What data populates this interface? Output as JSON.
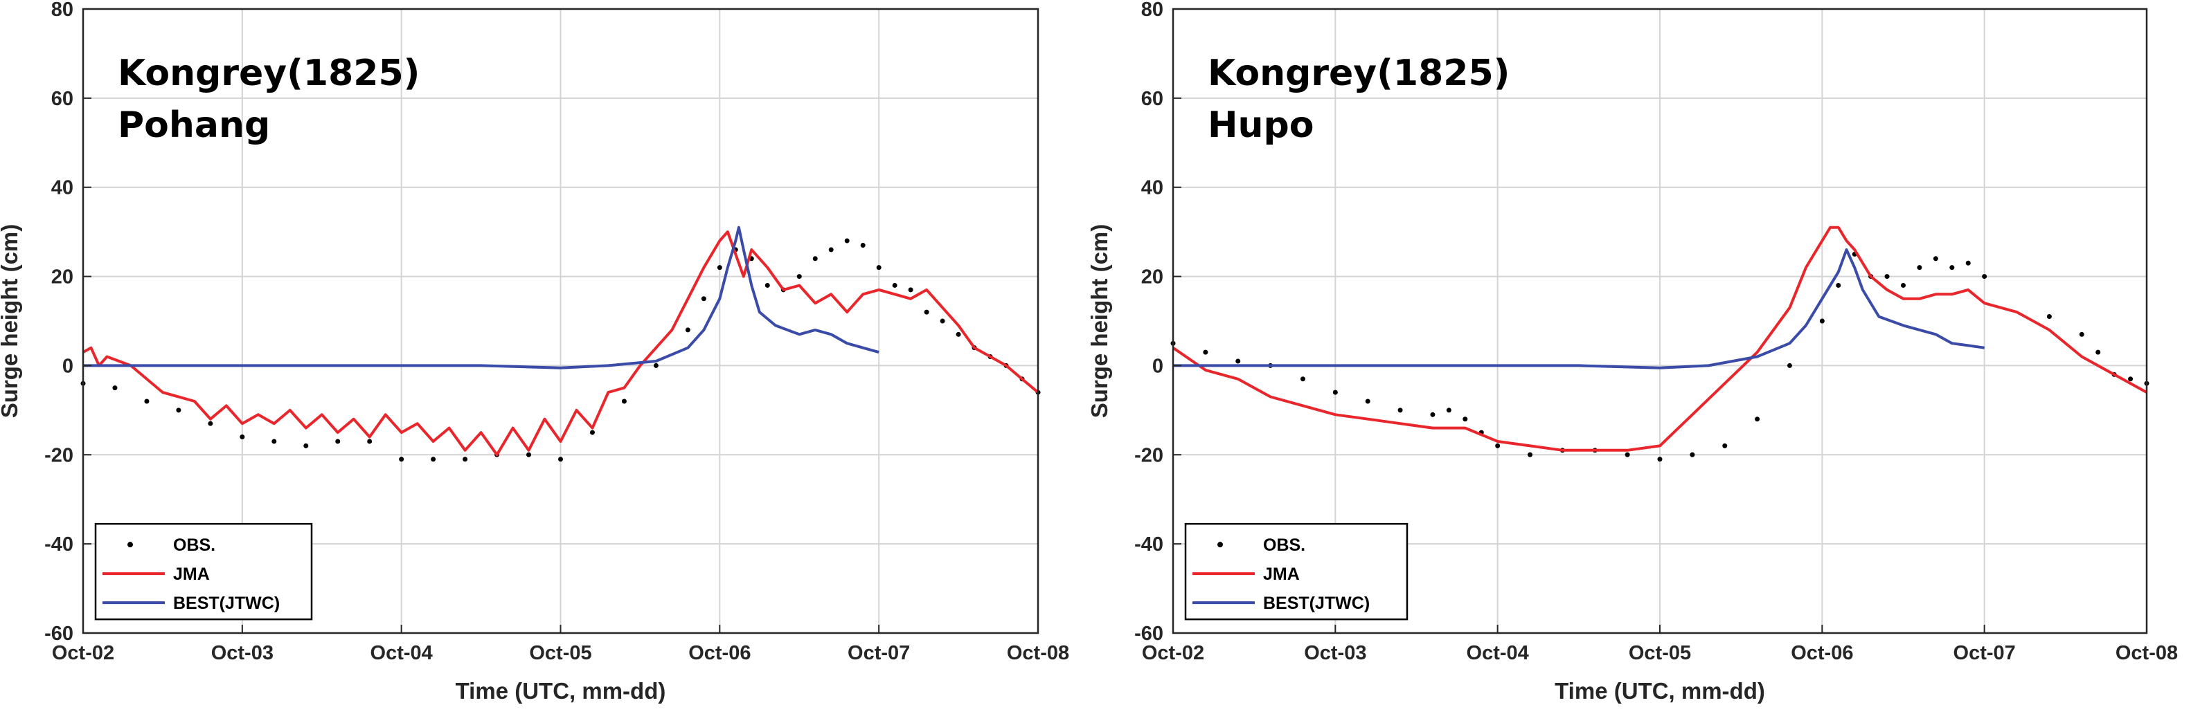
{
  "chart_data": [
    {
      "type": "line",
      "title_lines": [
        "Kongrey(1825)",
        "Pohang"
      ],
      "xlabel": "Time (UTC, mm-dd)",
      "ylabel": "Surge height (cm)",
      "x_tick_labels": [
        "Oct-02",
        "Oct-03",
        "Oct-04",
        "Oct-05",
        "Oct-06",
        "Oct-07",
        "Oct-08"
      ],
      "y_ticks": [
        80,
        60,
        40,
        20,
        0,
        -20,
        -40,
        -60
      ],
      "xlim_days": [
        0,
        6
      ],
      "ylim": [
        -60,
        80
      ],
      "grid": true,
      "legend_position": "bottom-left",
      "legend": [
        "OBS.",
        "JMA",
        "BEST(JTWC)"
      ],
      "series": [
        {
          "name": "OBS.",
          "style": "dots",
          "color": "#000000",
          "points": [
            [
              0,
              -4
            ],
            [
              0.2,
              -5
            ],
            [
              0.4,
              -8
            ],
            [
              0.6,
              -10
            ],
            [
              0.8,
              -13
            ],
            [
              1.0,
              -16
            ],
            [
              1.2,
              -17
            ],
            [
              1.4,
              -18
            ],
            [
              1.6,
              -17
            ],
            [
              1.8,
              -17
            ],
            [
              2.0,
              -21
            ],
            [
              2.2,
              -21
            ],
            [
              2.4,
              -21
            ],
            [
              2.6,
              -20
            ],
            [
              2.8,
              -20
            ],
            [
              3.0,
              -21
            ],
            [
              3.2,
              -15
            ],
            [
              3.4,
              -8
            ],
            [
              3.6,
              0
            ],
            [
              3.8,
              8
            ],
            [
              3.9,
              15
            ],
            [
              4.0,
              22
            ],
            [
              4.1,
              26
            ],
            [
              4.2,
              24
            ],
            [
              4.3,
              18
            ],
            [
              4.4,
              17
            ],
            [
              4.5,
              20
            ],
            [
              4.6,
              24
            ],
            [
              4.7,
              26
            ],
            [
              4.8,
              28
            ],
            [
              4.9,
              27
            ],
            [
              5.0,
              22
            ],
            [
              5.1,
              18
            ],
            [
              5.2,
              17
            ],
            [
              5.3,
              12
            ],
            [
              5.4,
              10
            ],
            [
              5.5,
              7
            ],
            [
              5.6,
              4
            ],
            [
              5.7,
              2
            ],
            [
              5.8,
              0
            ],
            [
              5.9,
              -3
            ],
            [
              6.0,
              -6
            ]
          ]
        },
        {
          "name": "JMA",
          "style": "line",
          "color": "#e8262b",
          "points": [
            [
              0,
              3
            ],
            [
              0.05,
              4
            ],
            [
              0.1,
              0
            ],
            [
              0.15,
              2
            ],
            [
              0.3,
              0
            ],
            [
              0.5,
              -6
            ],
            [
              0.7,
              -8
            ],
            [
              0.8,
              -12
            ],
            [
              0.9,
              -9
            ],
            [
              1.0,
              -13
            ],
            [
              1.1,
              -11
            ],
            [
              1.2,
              -13
            ],
            [
              1.3,
              -10
            ],
            [
              1.4,
              -14
            ],
            [
              1.5,
              -11
            ],
            [
              1.6,
              -15
            ],
            [
              1.7,
              -12
            ],
            [
              1.8,
              -16
            ],
            [
              1.9,
              -11
            ],
            [
              2.0,
              -15
            ],
            [
              2.1,
              -13
            ],
            [
              2.2,
              -17
            ],
            [
              2.3,
              -14
            ],
            [
              2.4,
              -19
            ],
            [
              2.5,
              -15
            ],
            [
              2.6,
              -20
            ],
            [
              2.7,
              -14
            ],
            [
              2.8,
              -19
            ],
            [
              2.9,
              -12
            ],
            [
              3.0,
              -17
            ],
            [
              3.1,
              -10
            ],
            [
              3.2,
              -14
            ],
            [
              3.3,
              -6
            ],
            [
              3.4,
              -5
            ],
            [
              3.5,
              0
            ],
            [
              3.6,
              4
            ],
            [
              3.7,
              8
            ],
            [
              3.8,
              15
            ],
            [
              3.9,
              22
            ],
            [
              4.0,
              28
            ],
            [
              4.05,
              30
            ],
            [
              4.1,
              25
            ],
            [
              4.15,
              20
            ],
            [
              4.2,
              26
            ],
            [
              4.3,
              22
            ],
            [
              4.4,
              17
            ],
            [
              4.5,
              18
            ],
            [
              4.6,
              14
            ],
            [
              4.7,
              16
            ],
            [
              4.8,
              12
            ],
            [
              4.9,
              16
            ],
            [
              5.0,
              17
            ],
            [
              5.1,
              16
            ],
            [
              5.2,
              15
            ],
            [
              5.3,
              17
            ],
            [
              5.4,
              13
            ],
            [
              5.5,
              9
            ],
            [
              5.6,
              4
            ],
            [
              5.7,
              2
            ],
            [
              5.8,
              0
            ],
            [
              5.9,
              -3
            ],
            [
              6.0,
              -6
            ]
          ]
        },
        {
          "name": "BEST(JTWC)",
          "style": "line",
          "color": "#3a4ba8",
          "points": [
            [
              0,
              0
            ],
            [
              1.0,
              0
            ],
            [
              2.0,
              0
            ],
            [
              2.5,
              0
            ],
            [
              3.0,
              -0.5
            ],
            [
              3.3,
              0
            ],
            [
              3.6,
              1
            ],
            [
              3.8,
              4
            ],
            [
              3.9,
              8
            ],
            [
              4.0,
              15
            ],
            [
              4.05,
              22
            ],
            [
              4.1,
              28
            ],
            [
              4.12,
              31
            ],
            [
              4.15,
              26
            ],
            [
              4.2,
              18
            ],
            [
              4.25,
              12
            ],
            [
              4.35,
              9
            ],
            [
              4.5,
              7
            ],
            [
              4.6,
              8
            ],
            [
              4.7,
              7
            ],
            [
              4.8,
              5
            ],
            [
              4.9,
              4
            ],
            [
              5.0,
              3
            ]
          ]
        }
      ]
    },
    {
      "type": "line",
      "title_lines": [
        "Kongrey(1825)",
        "Hupo"
      ],
      "xlabel": "Time (UTC, mm-dd)",
      "ylabel": "Surge height (cm)",
      "x_tick_labels": [
        "Oct-02",
        "Oct-03",
        "Oct-04",
        "Oct-05",
        "Oct-06",
        "Oct-07",
        "Oct-08"
      ],
      "y_ticks": [
        80,
        60,
        40,
        20,
        0,
        -20,
        -40,
        -60
      ],
      "xlim_days": [
        0,
        6
      ],
      "ylim": [
        -60,
        80
      ],
      "grid": true,
      "legend_position": "bottom-left",
      "legend": [
        "OBS.",
        "JMA",
        "BEST(JTWC)"
      ],
      "series": [
        {
          "name": "OBS.",
          "style": "dots",
          "color": "#000000",
          "points": [
            [
              0,
              5
            ],
            [
              0.2,
              3
            ],
            [
              0.4,
              1
            ],
            [
              0.6,
              0
            ],
            [
              0.8,
              -3
            ],
            [
              1.0,
              -6
            ],
            [
              1.2,
              -8
            ],
            [
              1.4,
              -10
            ],
            [
              1.6,
              -11
            ],
            [
              1.7,
              -10
            ],
            [
              1.8,
              -12
            ],
            [
              1.9,
              -15
            ],
            [
              2.0,
              -18
            ],
            [
              2.2,
              -20
            ],
            [
              2.4,
              -19
            ],
            [
              2.6,
              -19
            ],
            [
              2.8,
              -20
            ],
            [
              3.0,
              -21
            ],
            [
              3.2,
              -20
            ],
            [
              3.4,
              -18
            ],
            [
              3.6,
              -12
            ],
            [
              3.8,
              0
            ],
            [
              4.0,
              10
            ],
            [
              4.1,
              18
            ],
            [
              4.2,
              25
            ],
            [
              4.3,
              20
            ],
            [
              4.4,
              20
            ],
            [
              4.5,
              18
            ],
            [
              4.6,
              22
            ],
            [
              4.7,
              24
            ],
            [
              4.8,
              22
            ],
            [
              4.9,
              23
            ],
            [
              5.0,
              20
            ],
            [
              5.4,
              11
            ],
            [
              5.6,
              7
            ],
            [
              5.7,
              3
            ],
            [
              5.8,
              -2
            ],
            [
              5.9,
              -3
            ],
            [
              6.0,
              -4
            ]
          ]
        },
        {
          "name": "JMA",
          "style": "line",
          "color": "#e8262b",
          "points": [
            [
              0,
              4
            ],
            [
              0.2,
              -1
            ],
            [
              0.4,
              -3
            ],
            [
              0.6,
              -7
            ],
            [
              0.8,
              -9
            ],
            [
              1.0,
              -11
            ],
            [
              1.2,
              -12
            ],
            [
              1.4,
              -13
            ],
            [
              1.6,
              -14
            ],
            [
              1.8,
              -14
            ],
            [
              2.0,
              -17
            ],
            [
              2.2,
              -18
            ],
            [
              2.4,
              -19
            ],
            [
              2.6,
              -19
            ],
            [
              2.8,
              -19
            ],
            [
              3.0,
              -18
            ],
            [
              3.2,
              -11
            ],
            [
              3.4,
              -4
            ],
            [
              3.6,
              3
            ],
            [
              3.8,
              13
            ],
            [
              3.9,
              22
            ],
            [
              4.0,
              28
            ],
            [
              4.05,
              31
            ],
            [
              4.1,
              31
            ],
            [
              4.15,
              28
            ],
            [
              4.2,
              26
            ],
            [
              4.3,
              20
            ],
            [
              4.4,
              17
            ],
            [
              4.5,
              15
            ],
            [
              4.6,
              15
            ],
            [
              4.7,
              16
            ],
            [
              4.8,
              16
            ],
            [
              4.9,
              17
            ],
            [
              5.0,
              14
            ],
            [
              5.2,
              12
            ],
            [
              5.4,
              8
            ],
            [
              5.6,
              2
            ],
            [
              5.8,
              -2
            ],
            [
              6.0,
              -6
            ]
          ]
        },
        {
          "name": "BEST(JTWC)",
          "style": "line",
          "color": "#3a4ba8",
          "points": [
            [
              0,
              0
            ],
            [
              1.0,
              0
            ],
            [
              2.0,
              0
            ],
            [
              2.5,
              0
            ],
            [
              3.0,
              -0.5
            ],
            [
              3.3,
              0
            ],
            [
              3.6,
              2
            ],
            [
              3.8,
              5
            ],
            [
              3.9,
              9
            ],
            [
              4.0,
              15
            ],
            [
              4.1,
              21
            ],
            [
              4.15,
              26
            ],
            [
              4.2,
              22
            ],
            [
              4.25,
              17
            ],
            [
              4.35,
              11
            ],
            [
              4.5,
              9
            ],
            [
              4.7,
              7
            ],
            [
              4.8,
              5
            ],
            [
              4.9,
              4.5
            ],
            [
              5.0,
              4
            ]
          ]
        }
      ]
    }
  ]
}
